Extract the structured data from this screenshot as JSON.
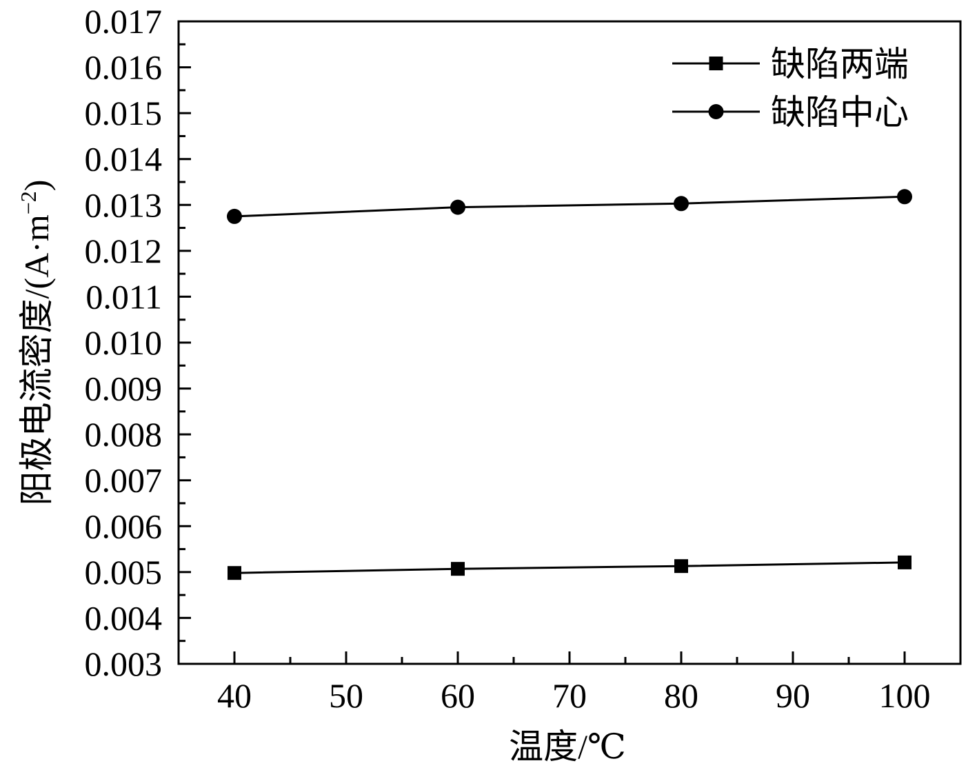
{
  "chart_data": {
    "type": "line",
    "title": "",
    "xlabel": "温度/℃",
    "ylabel_main": "阳极电流密度/(A·m",
    "ylabel_sup": "−2",
    "ylabel_close": ")",
    "xlim": [
      35,
      105
    ],
    "ylim": [
      0.003,
      0.017
    ],
    "x_ticks": [
      40,
      50,
      60,
      70,
      80,
      90,
      100
    ],
    "y_ticks": [
      0.003,
      0.004,
      0.005,
      0.006,
      0.007,
      0.008,
      0.009,
      0.01,
      0.011,
      0.012,
      0.013,
      0.014,
      0.015,
      0.016,
      0.017
    ],
    "y_tick_decimals": 3,
    "grid": false,
    "legend_position": "top-right",
    "series": [
      {
        "name": "缺陷两端",
        "marker": "square",
        "color": "#000000",
        "x": [
          40,
          60,
          80,
          100
        ],
        "y": [
          0.00498,
          0.00507,
          0.00513,
          0.00521
        ]
      },
      {
        "name": "缺陷中心",
        "marker": "circle",
        "color": "#000000",
        "x": [
          40,
          60,
          80,
          100
        ],
        "y": [
          0.01275,
          0.01295,
          0.01303,
          0.01318
        ]
      }
    ]
  }
}
